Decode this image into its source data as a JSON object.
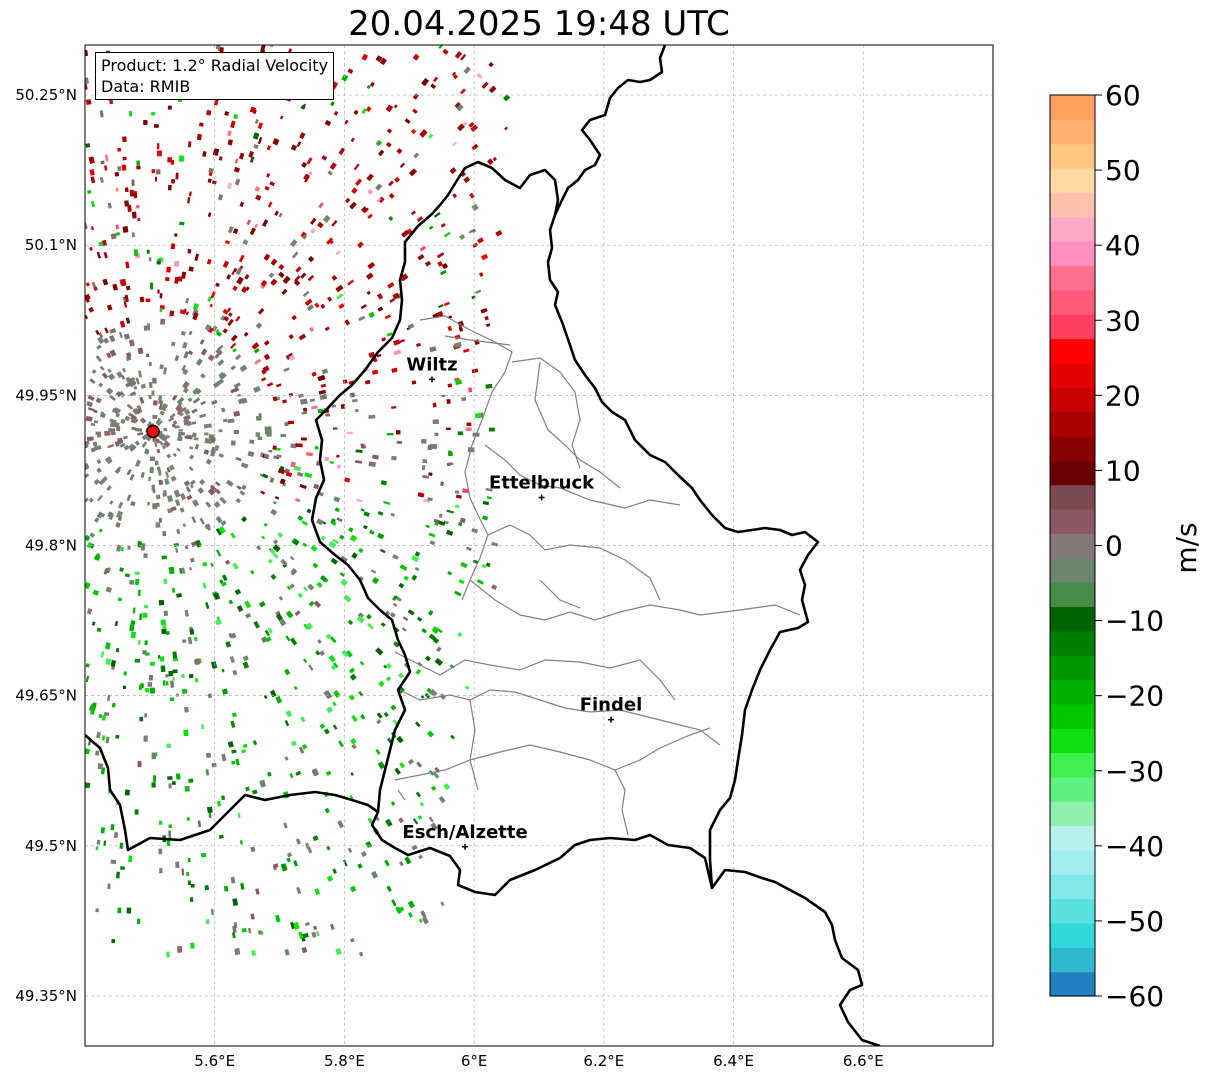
{
  "title": "20.04.2025 19:48 UTC",
  "info": {
    "product": "Product: 1.2° Radial Velocity",
    "data_source": "Data: RMIB"
  },
  "lat_labels": [
    "50.25°N",
    "50.1°N",
    "49.95°N",
    "49.8°N",
    "49.65°N",
    "49.5°N",
    "49.35°N"
  ],
  "lon_labels": [
    "5.6°E",
    "5.8°E",
    "6°E",
    "6.2°E",
    "6.4°E",
    "6.6°E"
  ],
  "lat_values": [
    50.25,
    50.1,
    49.95,
    49.8,
    49.65,
    49.5,
    49.35
  ],
  "lon_values": [
    5.6,
    5.8,
    6.0,
    6.2,
    6.4,
    6.6
  ],
  "extent": {
    "lon_min": 5.4,
    "lon_max": 6.8,
    "lat_min": 49.3,
    "lat_max": 50.3
  },
  "cities": [
    {
      "name": "Wiltz",
      "lon": 5.935,
      "lat": 49.966
    },
    {
      "name": "Ettelbruck",
      "lon": 6.104,
      "lat": 49.848
    },
    {
      "name": "Findel",
      "lon": 6.211,
      "lat": 49.626
    },
    {
      "name": "Esch/Alzette",
      "lon": 5.986,
      "lat": 49.499
    }
  ],
  "radar_site": {
    "name": "radar-site",
    "lon": 5.505,
    "lat": 49.914,
    "color": "#ff0000"
  },
  "colorbar": {
    "label": "m/s",
    "vmin": -60,
    "vmax": 60,
    "ticks": [
      "60",
      "50",
      "40",
      "30",
      "20",
      "10",
      "0",
      "−10",
      "−20",
      "−30",
      "−40",
      "−50",
      "−60"
    ],
    "tick_values": [
      60,
      50,
      40,
      30,
      20,
      10,
      0,
      -10,
      -20,
      -30,
      -40,
      -50,
      -60
    ],
    "colors": [
      "#2080c0",
      "#30b8d0",
      "#30d8d8",
      "#5ae0e0",
      "#80e8e8",
      "#a0eeee",
      "#b8f0f0",
      "#90f0b0",
      "#60f080",
      "#40f050",
      "#10e010",
      "#00c800",
      "#00b000",
      "#009800",
      "#007f00",
      "#006400",
      "#4a8a4a",
      "#6b866b",
      "#857878",
      "#8a5a64",
      "#7a4a50",
      "#6a0000",
      "#8a0000",
      "#aa0000",
      "#c80000",
      "#e40000",
      "#ff0000",
      "#ff4060",
      "#ff5a78",
      "#ff7090",
      "#ff90c0",
      "#ffa8c8",
      "#ffc0b0",
      "#ffd8a0",
      "#ffc880",
      "#ffb070",
      "#ffa060"
    ]
  },
  "colors": {
    "border": "#000000",
    "canton": "#808080",
    "grid": "#b0b0b0",
    "title": "#000000"
  }
}
